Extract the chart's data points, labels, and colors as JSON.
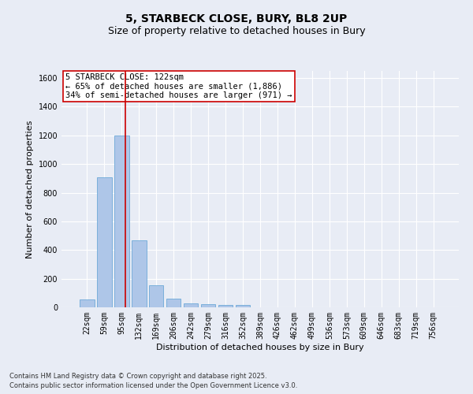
{
  "title1": "5, STARBECK CLOSE, BURY, BL8 2UP",
  "title2": "Size of property relative to detached houses in Bury",
  "xlabel": "Distribution of detached houses by size in Bury",
  "ylabel": "Number of detached properties",
  "categories": [
    "22sqm",
    "59sqm",
    "95sqm",
    "132sqm",
    "169sqm",
    "206sqm",
    "242sqm",
    "279sqm",
    "316sqm",
    "352sqm",
    "389sqm",
    "426sqm",
    "462sqm",
    "499sqm",
    "536sqm",
    "573sqm",
    "609sqm",
    "646sqm",
    "683sqm",
    "719sqm",
    "756sqm"
  ],
  "values": [
    55,
    910,
    1200,
    470,
    155,
    60,
    30,
    20,
    15,
    15,
    0,
    0,
    0,
    0,
    0,
    0,
    0,
    0,
    0,
    0,
    0
  ],
  "bar_color": "#aec6e8",
  "bar_edge_color": "#5a9fd4",
  "vline_color": "#cc0000",
  "annotation_text": "5 STARBECK CLOSE: 122sqm\n← 65% of detached houses are smaller (1,886)\n34% of semi-detached houses are larger (971) →",
  "annotation_box_color": "#ffffff",
  "annotation_box_edge": "#cc0000",
  "ylim": [
    0,
    1650
  ],
  "yticks": [
    0,
    200,
    400,
    600,
    800,
    1000,
    1200,
    1400,
    1600
  ],
  "bg_color": "#e8ecf5",
  "plot_bg_color": "#e8ecf5",
  "grid_color": "#ffffff",
  "footer1": "Contains HM Land Registry data © Crown copyright and database right 2025.",
  "footer2": "Contains public sector information licensed under the Open Government Licence v3.0.",
  "title_fontsize": 10,
  "subtitle_fontsize": 9,
  "axis_label_fontsize": 8,
  "tick_fontsize": 7,
  "annotation_fontsize": 7.5,
  "ylabel_fontsize": 8
}
